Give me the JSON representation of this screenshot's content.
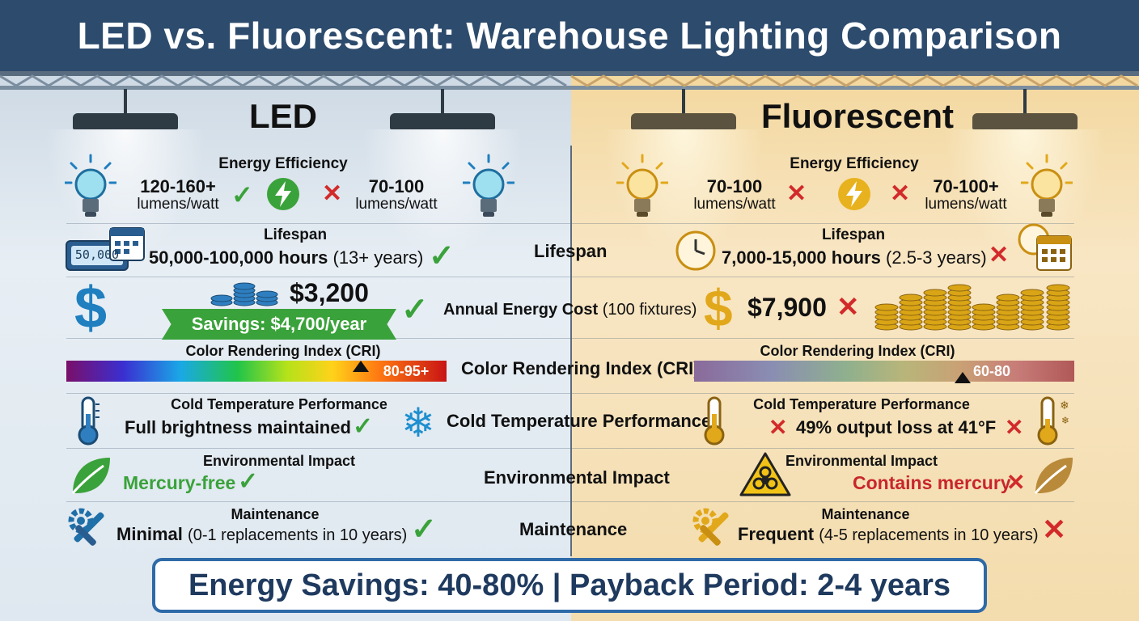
{
  "title": "LED vs. Fluorescent: Warehouse Lighting Comparison",
  "colors": {
    "header_bg": "#2d4b6d",
    "led_bg": "#dfe8f0",
    "fluorescent_bg": "#f6e2b8",
    "check": "#3aa23a",
    "cross": "#d22a2a",
    "led_accent": "#1f7fbf",
    "fluorescent_accent": "#e2a81b"
  },
  "led": {
    "title": "LED",
    "energy": {
      "heading": "Energy Efficiency",
      "value_main": "120-160+",
      "value_unit": "lumens/watt",
      "compare_main": "70-100",
      "compare_unit": "lumens/watt"
    },
    "lifespan": {
      "heading": "Lifespan",
      "display": "50,000",
      "value": "50,000-100,000 hours",
      "note": "(13+ years)"
    },
    "cost": {
      "value": "$3,200",
      "savings": "Savings: $4,700/year"
    },
    "cri": {
      "heading": "Color Rendering Index (CRI)",
      "range": "80-95+"
    },
    "cold": {
      "heading": "Cold Temperature Performance",
      "value": "Full brightness maintained"
    },
    "env": {
      "heading": "Environmental Impact",
      "value": "Mercury-free"
    },
    "maint": {
      "heading": "Maintenance",
      "value": "Minimal",
      "note": "(0-1 replacements in 10 years)"
    }
  },
  "center": {
    "lifespan": "Lifespan",
    "cost_label": "Annual Energy Cost",
    "cost_note": "(100 fixtures)",
    "cri": "Color Rendering Index (CRI)",
    "cold": "Cold Temperature Performance",
    "env": "Environmental Impact",
    "maint": "Maintenance"
  },
  "fluorescent": {
    "title": "Fluorescent",
    "energy": {
      "heading": "Energy Efficiency",
      "value_main": "70-100",
      "value_unit": "lumens/watt",
      "compare_main": "70-100+",
      "compare_unit": "lumens/watt"
    },
    "lifespan": {
      "heading": "Lifespan",
      "value": "7,000-15,000 hours",
      "note": "(2.5-3 years)"
    },
    "cost": {
      "value": "$7,900"
    },
    "cri": {
      "heading": "Color Rendering Index (CRI)",
      "range": "60-80"
    },
    "cold": {
      "heading": "Cold Temperature Performance",
      "value": "49% output loss at 41°F"
    },
    "env": {
      "heading": "Environmental Impact",
      "value": "Contains mercury"
    },
    "maint": {
      "heading": "Maintenance",
      "value": "Frequent",
      "note": "(4-5 replacements in 10 years)"
    }
  },
  "banner": "Energy Savings: 40-80% | Payback Period: 2-4 years",
  "icons": [
    "lightbulb-icon",
    "lightning-icon",
    "check-icon",
    "cross-icon",
    "timer-icon",
    "calendar-icon",
    "clock-icon",
    "dollar-icon",
    "coins-icon",
    "thermometer-icon",
    "snowflake-icon",
    "leaf-icon",
    "biohazard-icon",
    "tools-icon"
  ]
}
